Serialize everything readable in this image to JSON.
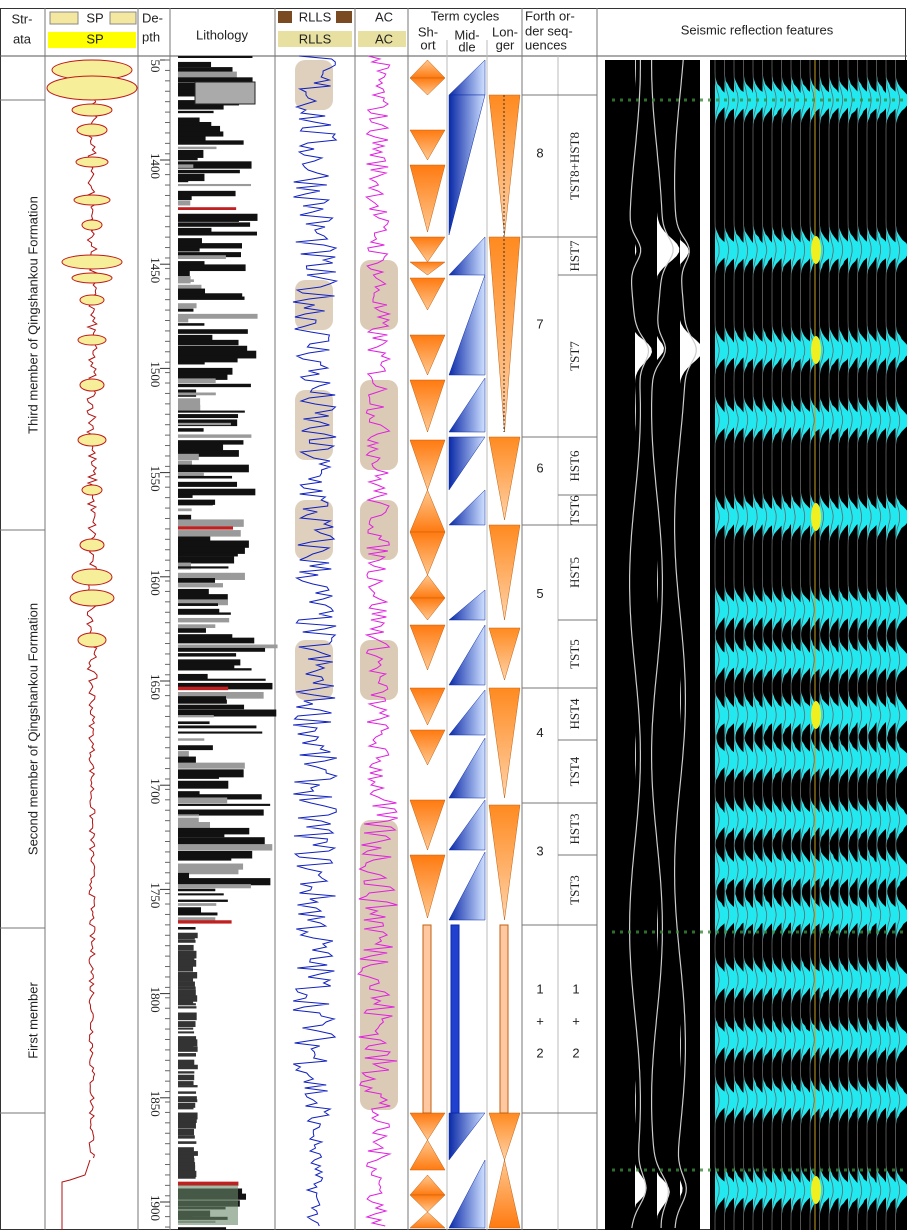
{
  "header": {
    "strata": [
      "Str-",
      "ata"
    ],
    "sp": [
      "SP",
      "SP"
    ],
    "depth": [
      "De-",
      "pth"
    ],
    "lithology": "Lithology",
    "rlls": [
      "RLLS",
      "RLLS"
    ],
    "ac": [
      "AC",
      "AC"
    ],
    "term_cycles": "Term cycles",
    "short": [
      "Sh-",
      "ort"
    ],
    "middle": [
      "Mid-",
      "dle"
    ],
    "longer": [
      "Lon-",
      "ger"
    ],
    "sequences": [
      "Forth or-",
      "der seq-",
      "uences"
    ],
    "seismic": "Seismic reflection features"
  },
  "strata": [
    "Third member of Qingshankou Formation",
    "Second member of Qingshankou Formation",
    "First member"
  ],
  "depth_ticks": [
    50,
    1400,
    1450,
    1500,
    1550,
    1600,
    1650,
    1700,
    1750,
    1800,
    1850,
    1900
  ],
  "sequences": [
    {
      "number": "8",
      "tracts": [
        "TST8+HST8"
      ]
    },
    {
      "number": "7",
      "tracts": [
        "HST7",
        "TST7"
      ]
    },
    {
      "number": "6",
      "tracts": [
        "HST6",
        "TST6"
      ]
    },
    {
      "number": "5",
      "tracts": [
        "HST5",
        "TST5"
      ]
    },
    {
      "number": "4",
      "tracts": [
        "HST4",
        "TST4"
      ]
    },
    {
      "number": "3",
      "tracts": [
        "HST3",
        "TST3"
      ]
    }
  ],
  "sequence_1_2": {
    "number": [
      "1",
      "+",
      "2"
    ],
    "tract": [
      "1",
      "+",
      "2"
    ]
  }
}
